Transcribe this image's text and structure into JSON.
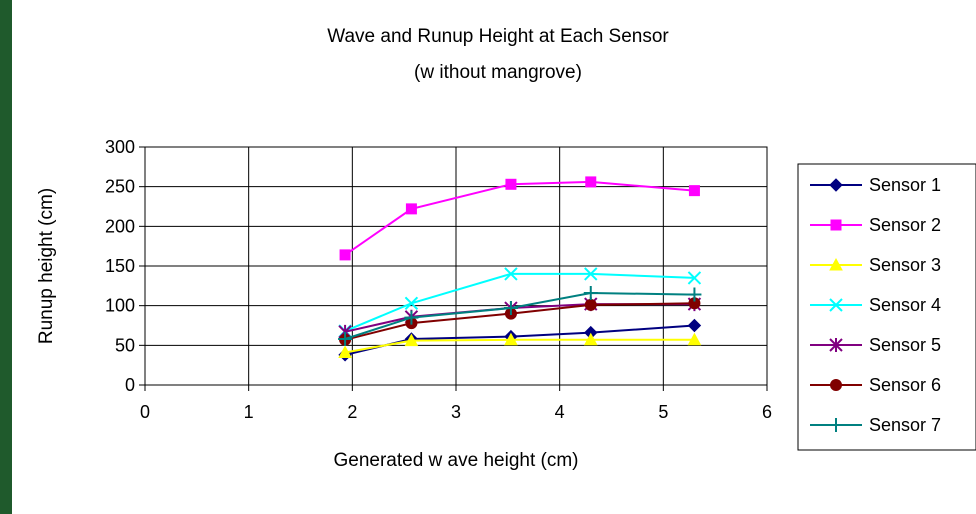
{
  "chart_data": {
    "type": "line",
    "title": "Wave and Runup Height at Each Sensor",
    "subtitle": "(w ithout mangrove)",
    "xlabel": "Generated w ave height (cm)",
    "ylabel": "Runup height (cm)",
    "xlim": [
      0,
      6
    ],
    "ylim": [
      0,
      300
    ],
    "xticks": [
      "0",
      "1",
      "2",
      "3",
      "4",
      "5",
      "6"
    ],
    "yticks": [
      "0",
      "50",
      "100",
      "150",
      "200",
      "250",
      "300"
    ],
    "grid": true,
    "legend_position": "right",
    "x": [
      1.93,
      2.57,
      3.53,
      4.3,
      5.3
    ],
    "series": [
      {
        "name": "Sensor 1",
        "color": "#000080",
        "marker": "diamond",
        "values": [
          38,
          58,
          61,
          66,
          75
        ]
      },
      {
        "name": "Sensor 2",
        "color": "#ff00ff",
        "marker": "square",
        "values": [
          164,
          222,
          253,
          256,
          245
        ]
      },
      {
        "name": "Sensor 3",
        "color": "#ffff00",
        "marker": "triangle",
        "values": [
          41,
          56,
          57,
          57,
          57
        ]
      },
      {
        "name": "Sensor 4",
        "color": "#00ffff",
        "marker": "x",
        "values": [
          68,
          103,
          140,
          140,
          135
        ]
      },
      {
        "name": "Sensor 5",
        "color": "#800080",
        "marker": "star",
        "values": [
          67,
          86,
          97,
          102,
          102
        ]
      },
      {
        "name": "Sensor 6",
        "color": "#800000",
        "marker": "circle",
        "values": [
          57,
          78,
          90,
          101,
          103
        ]
      },
      {
        "name": "Sensor 7",
        "color": "#008080",
        "marker": "plus",
        "values": [
          58,
          85,
          97,
          116,
          114
        ]
      }
    ]
  }
}
